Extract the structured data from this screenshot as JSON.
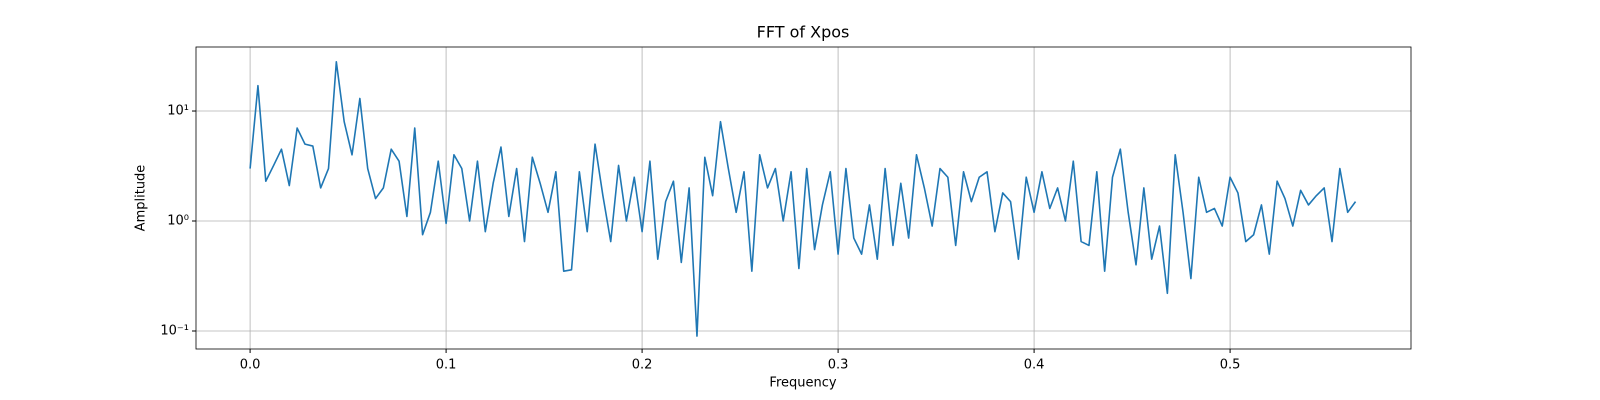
{
  "chart_data": {
    "type": "line",
    "title": "FFT of Xpos",
    "x_label": "Frequency",
    "y_label": "Amplitude",
    "log_y": true,
    "grid": true,
    "color": "#1f77b4",
    "xlim": [
      -0.0276,
      0.5923
    ],
    "ylim": [
      0.0686,
      38.2
    ],
    "xticks": [
      {
        "value": 0,
        "label": "0.0"
      },
      0.1,
      0.2,
      0.3,
      0.4,
      0.5
    ],
    "yticks": [
      {
        "value": 0.1,
        "label": "10⁻¹"
      },
      {
        "value": 1,
        "label": "10⁰"
      },
      {
        "value": 10,
        "label": "10¹"
      }
    ],
    "x": [
      0,
      0.004,
      0.008,
      0.012,
      0.016,
      0.02,
      0.024,
      0.028,
      0.032,
      0.036,
      0.04,
      0.044,
      0.048,
      0.052,
      0.056,
      0.06,
      0.064,
      0.068,
      0.072,
      0.076,
      0.08,
      0.084,
      0.088,
      0.092,
      0.096,
      0.1,
      0.104,
      0.108,
      0.112,
      0.116,
      0.12,
      0.124,
      0.128,
      0.132,
      0.136,
      0.14,
      0.144,
      0.148,
      0.152,
      0.156,
      0.16,
      0.164,
      0.168,
      0.172,
      0.176,
      0.18,
      0.184,
      0.188,
      0.192,
      0.196,
      0.2,
      0.204,
      0.208,
      0.212,
      0.216,
      0.22,
      0.224,
      0.228,
      0.232,
      0.236,
      0.24,
      0.244,
      0.248,
      0.252,
      0.256,
      0.26,
      0.264,
      0.268,
      0.272,
      0.276,
      0.28,
      0.284,
      0.288,
      0.292,
      0.296,
      0.3,
      0.304,
      0.308,
      0.312,
      0.316,
      0.32,
      0.324,
      0.328,
      0.332,
      0.336,
      0.34,
      0.344,
      0.348,
      0.352,
      0.356,
      0.36,
      0.364,
      0.368,
      0.372,
      0.376,
      0.38,
      0.384,
      0.388,
      0.392,
      0.396,
      0.4,
      0.404,
      0.408,
      0.412,
      0.416,
      0.42,
      0.424,
      0.428,
      0.432,
      0.436,
      0.44,
      0.444,
      0.448,
      0.452,
      0.456,
      0.46,
      0.464,
      0.468,
      0.472,
      0.476,
      0.48,
      0.484,
      0.488,
      0.492,
      0.496,
      0.5,
      0.504,
      0.508,
      0.512,
      0.516,
      0.52,
      0.524,
      0.528,
      0.532,
      0.536,
      0.54,
      0.544,
      0.548,
      0.552,
      0.556,
      0.56,
      0.564
    ],
    "values": [
      3.0,
      17,
      2.3,
      3.2,
      4.5,
      2.1,
      7,
      5,
      4.8,
      2.0,
      3,
      28,
      8,
      4,
      13,
      3.0,
      1.6,
      2.0,
      4.5,
      3.5,
      1.1,
      7,
      0.75,
      1.2,
      3.5,
      0.95,
      4.0,
      3.0,
      1.0,
      3.5,
      0.8,
      2.2,
      4.7,
      1.1,
      3.0,
      0.65,
      3.8,
      2.2,
      1.2,
      2.8,
      0.35,
      0.36,
      2.8,
      0.8,
      5.0,
      1.7,
      0.65,
      3.2,
      1.0,
      2.5,
      0.8,
      3.5,
      0.45,
      1.5,
      2.3,
      0.42,
      2.0,
      0.09,
      3.8,
      1.7,
      8.0,
      3.0,
      1.2,
      2.8,
      0.35,
      4.0,
      2.0,
      3.0,
      1.0,
      2.8,
      0.37,
      3.0,
      0.55,
      1.4,
      2.8,
      0.5,
      3.0,
      0.7,
      0.5,
      1.4,
      0.45,
      3.0,
      0.6,
      2.2,
      0.7,
      4.0,
      2.0,
      0.9,
      3.0,
      2.5,
      0.6,
      2.8,
      1.5,
      2.5,
      2.8,
      0.8,
      1.8,
      1.5,
      0.45,
      2.5,
      1.2,
      2.8,
      1.3,
      2.0,
      1.0,
      3.5,
      0.65,
      0.6,
      2.8,
      0.35,
      2.5,
      4.5,
      1.2,
      0.4,
      2.0,
      0.45,
      0.9,
      0.22,
      4.0,
      1.2,
      0.3,
      2.5,
      1.2,
      1.3,
      0.9,
      2.5,
      1.8,
      0.65,
      0.75,
      1.4,
      0.5,
      2.3,
      1.6,
      0.9,
      1.9,
      1.4,
      1.7,
      2.0,
      0.65,
      3.0,
      1.2,
      1.5
    ]
  }
}
